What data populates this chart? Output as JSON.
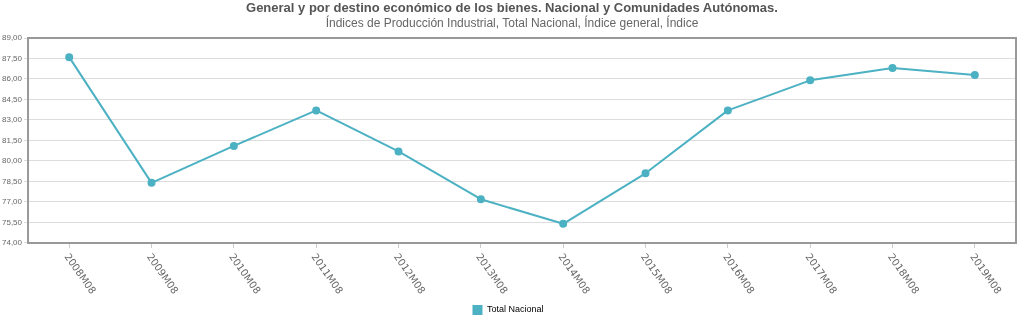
{
  "chart_data": {
    "type": "line",
    "title": "General y por destino económico de los bienes. Nacional y Comunidades Autónomas.",
    "subtitle": "Índices de Producción Industrial, Total Nacional, Índice general, Índice",
    "categories": [
      "2008M08",
      "2009M08",
      "2010M08",
      "2011M08",
      "2012M08",
      "2013M08",
      "2014M08",
      "2015M08",
      "2016M08",
      "2017M08",
      "2018M08",
      "2019M08"
    ],
    "series": [
      {
        "name": "Total Nacional",
        "color": "#4bb1c3",
        "values": [
          87.6,
          78.4,
          81.1,
          83.7,
          80.7,
          77.2,
          75.4,
          79.1,
          83.7,
          85.9,
          86.8,
          86.3
        ]
      }
    ],
    "ylim": [
      74,
      89
    ],
    "yticks": [
      {
        "value": 74,
        "label": "74,00"
      },
      {
        "value": 75.5,
        "label": "75,50"
      },
      {
        "value": 77,
        "label": "77,00"
      },
      {
        "value": 78.5,
        "label": "78,50"
      },
      {
        "value": 80,
        "label": "80,00"
      },
      {
        "value": 81.5,
        "label": "81,50"
      },
      {
        "value": 83,
        "label": "83,00"
      },
      {
        "value": 84.5,
        "label": "84,50"
      },
      {
        "value": 86,
        "label": "86,00"
      },
      {
        "value": 87.5,
        "label": "87,50"
      },
      {
        "value": 89,
        "label": "89,00"
      }
    ],
    "grid": "y",
    "legend": "bottom",
    "marker": "circle",
    "line_style": "solid"
  }
}
